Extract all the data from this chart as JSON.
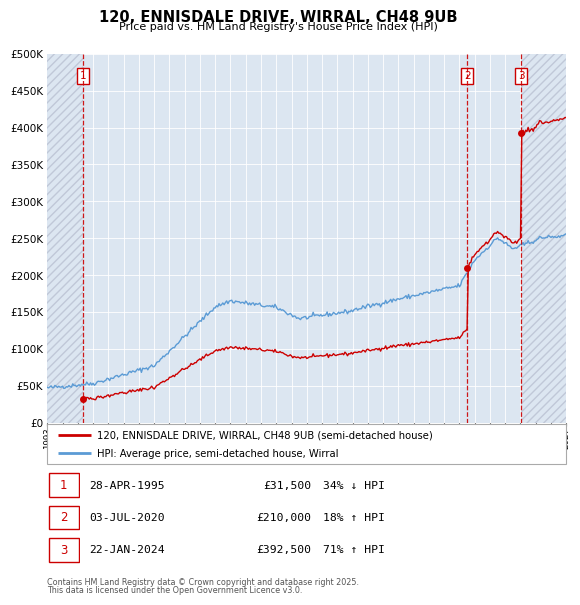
{
  "title": "120, ENNISDALE DRIVE, WIRRAL, CH48 9UB",
  "subtitle": "Price paid vs. HM Land Registry's House Price Index (HPI)",
  "legend_line1": "120, ENNISDALE DRIVE, WIRRAL, CH48 9UB (semi-detached house)",
  "legend_line2": "HPI: Average price, semi-detached house, Wirral",
  "transactions": [
    {
      "num": 1,
      "date": "28-APR-1995",
      "price": 31500,
      "hpi_pct": "34% ↓ HPI",
      "year": 1995.32
    },
    {
      "num": 2,
      "date": "03-JUL-2020",
      "price": 210000,
      "hpi_pct": "18% ↑ HPI",
      "year": 2020.5
    },
    {
      "num": 3,
      "date": "22-JAN-2024",
      "price": 392500,
      "hpi_pct": "71% ↑ HPI",
      "year": 2024.06
    }
  ],
  "footnote1": "Contains HM Land Registry data © Crown copyright and database right 2025.",
  "footnote2": "This data is licensed under the Open Government Licence v3.0.",
  "price_color": "#cc0000",
  "hpi_color": "#5b9bd5",
  "bg_color": "#dce6f1",
  "hatch_color": "#c0c8d8",
  "ylim": [
    0,
    500000
  ],
  "yticks": [
    0,
    50000,
    100000,
    150000,
    200000,
    250000,
    300000,
    350000,
    400000,
    450000,
    500000
  ],
  "xmin": 1993,
  "xmax": 2027
}
